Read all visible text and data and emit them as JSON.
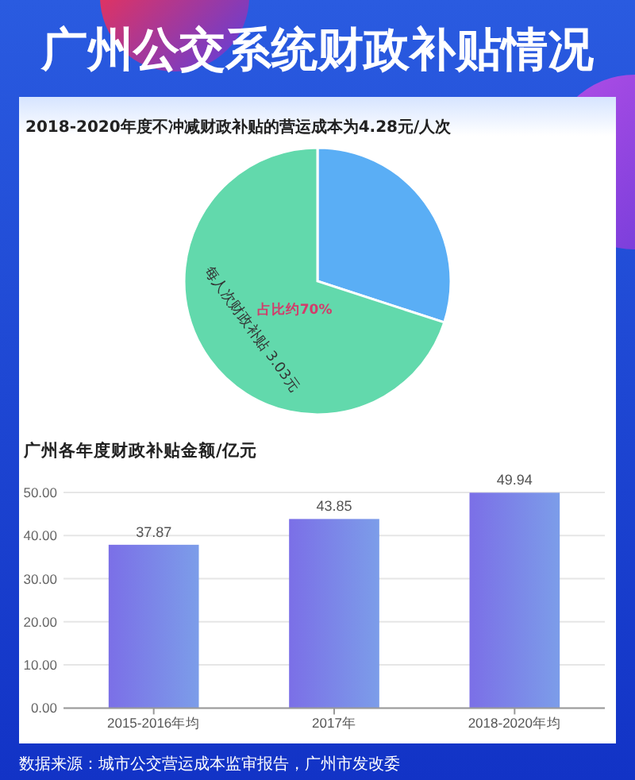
{
  "chart_data": [
    {
      "type": "pie",
      "title": "广州公交系统财政补贴情况",
      "subtitle": "2018-2020年度不冲减财政补贴的营运成本为4.28元/人次",
      "categories": [
        null,
        "每人次财政补贴 3.03元"
      ],
      "values": [
        30,
        70
      ],
      "colors": [
        "#5aaef5",
        "#62d9ac"
      ],
      "value_labels": [
        null,
        "占比约70%"
      ]
    },
    {
      "type": "bar",
      "title": "广州各年度财政补贴金额/亿元",
      "categories": [
        "2015-2016年均",
        "2017年",
        "2018-2020年均"
      ],
      "values": [
        37.87,
        43.85,
        49.94
      ],
      "color": "#6f7be7",
      "ylim": [
        0,
        50
      ],
      "yticks": [
        {
          "value": 0,
          "label": "0.00"
        },
        {
          "value": 10,
          "label": "10.00"
        },
        {
          "value": 20,
          "label": "20.00"
        },
        {
          "value": 30,
          "label": "30.00"
        },
        {
          "value": 40,
          "label": "40.00"
        },
        {
          "value": 50,
          "label": "50.00"
        }
      ],
      "grid": "y",
      "data_labels": true,
      "annotations": [
        "数据来源：城市公交营运成本监审报告，广州市发改委"
      ]
    }
  ]
}
